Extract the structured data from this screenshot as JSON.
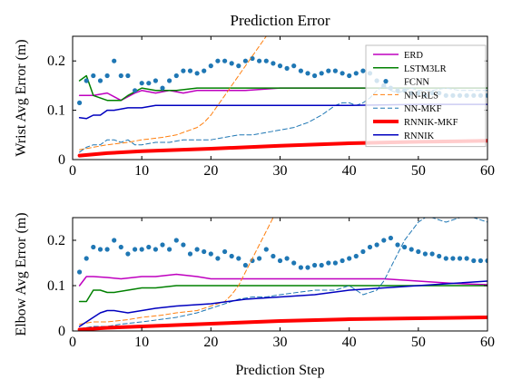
{
  "chart_data": [
    {
      "type": "line",
      "title": "Prediction Error",
      "xlabel": "",
      "ylabel": "Wrist Avg Error (m)",
      "xlim": [
        0,
        60
      ],
      "ylim": [
        0,
        0.25
      ],
      "xticks": [
        0,
        10,
        20,
        30,
        40,
        50,
        60
      ],
      "yticks": [
        0,
        0.1,
        0.2
      ],
      "xtick_labels": [
        "0",
        "10",
        "20",
        "30",
        "40",
        "50",
        "60"
      ],
      "ytick_labels": [
        "0",
        "0.1",
        "0.2"
      ],
      "grid": false,
      "legend": {
        "placement": "top-right",
        "entries": [
          "ERD",
          "LSTM3LR",
          "FCNN",
          "NN-RLS",
          "NN-MKF",
          "RNNIK-MKF",
          "RNNIK"
        ]
      },
      "series": [
        {
          "name": "ERD",
          "color": "#bf00bf",
          "style": "solid",
          "width": 1.5,
          "x": [
            1,
            3,
            5,
            7,
            9,
            10,
            12,
            14,
            16,
            18,
            20,
            25,
            30,
            35,
            40,
            45,
            50,
            55,
            60
          ],
          "y": [
            0.13,
            0.13,
            0.135,
            0.12,
            0.135,
            0.14,
            0.135,
            0.14,
            0.135,
            0.14,
            0.14,
            0.14,
            0.145,
            0.145,
            0.145,
            0.145,
            0.145,
            0.145,
            0.145
          ]
        },
        {
          "name": "LSTM3LR",
          "color": "#008000",
          "style": "solid",
          "width": 1.5,
          "x": [
            1,
            2,
            3,
            5,
            7,
            8,
            10,
            12,
            15,
            18,
            20,
            25,
            30,
            40,
            50,
            60
          ],
          "y": [
            0.16,
            0.17,
            0.13,
            0.12,
            0.12,
            0.13,
            0.145,
            0.14,
            0.14,
            0.145,
            0.145,
            0.145,
            0.145,
            0.145,
            0.145,
            0.145
          ]
        },
        {
          "name": "FCNN",
          "color": "#1f77b4",
          "style": "dots",
          "width": 0,
          "x": [
            1,
            2,
            3,
            4,
            5,
            6,
            7,
            8,
            9,
            10,
            11,
            12,
            13,
            14,
            15,
            16,
            17,
            18,
            19,
            20,
            21,
            22,
            23,
            24,
            25,
            26,
            27,
            28,
            29,
            30,
            31,
            32,
            33,
            34,
            35,
            36,
            37,
            38,
            39,
            40,
            41,
            42,
            43,
            44,
            45,
            46,
            47,
            48,
            49,
            50,
            51,
            52,
            53,
            54,
            55,
            56,
            57,
            58,
            59,
            60
          ],
          "y": [
            0.115,
            0.16,
            0.17,
            0.16,
            0.17,
            0.2,
            0.17,
            0.17,
            0.14,
            0.155,
            0.155,
            0.16,
            0.145,
            0.16,
            0.17,
            0.18,
            0.18,
            0.175,
            0.18,
            0.19,
            0.2,
            0.2,
            0.195,
            0.19,
            0.2,
            0.205,
            0.2,
            0.2,
            0.195,
            0.19,
            0.185,
            0.19,
            0.18,
            0.175,
            0.17,
            0.175,
            0.18,
            0.18,
            0.175,
            0.17,
            0.175,
            0.18,
            0.175,
            0.16,
            0.15,
            0.145,
            0.14,
            0.14,
            0.135,
            0.135,
            0.13,
            0.135,
            0.135,
            0.13,
            0.13,
            0.13,
            0.13,
            0.13,
            0.13,
            0.13
          ]
        },
        {
          "name": "NN-RLS",
          "color": "#ff7f0e",
          "style": "dashed",
          "width": 1,
          "x": [
            1,
            3,
            5,
            8,
            10,
            13,
            15,
            18,
            19,
            20,
            21,
            22,
            23,
            24,
            25,
            26,
            27,
            28
          ],
          "y": [
            0.02,
            0.025,
            0.03,
            0.035,
            0.04,
            0.045,
            0.05,
            0.065,
            0.075,
            0.09,
            0.11,
            0.13,
            0.15,
            0.17,
            0.19,
            0.21,
            0.23,
            0.25
          ]
        },
        {
          "name": "NN-MKF",
          "color": "#1f77b4",
          "style": "dashed",
          "width": 1,
          "x": [
            1,
            2,
            3,
            4,
            5,
            6,
            7,
            8,
            9,
            10,
            12,
            14,
            16,
            18,
            20,
            22,
            24,
            26,
            28,
            30,
            32,
            34,
            36,
            37,
            38,
            39,
            40,
            41,
            42,
            43,
            44,
            45,
            46,
            47,
            48,
            49,
            50,
            52,
            54,
            56,
            58,
            60
          ],
          "y": [
            0.015,
            0.025,
            0.03,
            0.03,
            0.04,
            0.04,
            0.035,
            0.04,
            0.03,
            0.03,
            0.035,
            0.035,
            0.04,
            0.04,
            0.04,
            0.045,
            0.05,
            0.05,
            0.055,
            0.06,
            0.065,
            0.075,
            0.09,
            0.1,
            0.11,
            0.115,
            0.115,
            0.11,
            0.115,
            0.125,
            0.14,
            0.15,
            0.14,
            0.135,
            0.14,
            0.145,
            0.14,
            0.14,
            0.145,
            0.14,
            0.14,
            0.14
          ]
        },
        {
          "name": "RNNIK-MKF",
          "color": "#ff0000",
          "style": "solid",
          "width": 4,
          "x": [
            1,
            5,
            10,
            20,
            30,
            40,
            50,
            60
          ],
          "y": [
            0.008,
            0.013,
            0.017,
            0.022,
            0.028,
            0.033,
            0.036,
            0.038
          ]
        },
        {
          "name": "RNNIK",
          "color": "#0000bf",
          "style": "solid",
          "width": 1.5,
          "x": [
            1,
            2,
            3,
            4,
            5,
            6,
            8,
            10,
            12,
            15,
            18,
            20,
            25,
            30,
            40,
            50,
            60
          ],
          "y": [
            0.085,
            0.083,
            0.09,
            0.09,
            0.1,
            0.1,
            0.105,
            0.105,
            0.11,
            0.11,
            0.11,
            0.11,
            0.11,
            0.11,
            0.11,
            0.112,
            0.112
          ]
        }
      ]
    },
    {
      "type": "line",
      "title": "",
      "xlabel": "Prediction Step",
      "ylabel": "Elbow Avg Error (m)",
      "xlim": [
        0,
        60
      ],
      "ylim": [
        0,
        0.25
      ],
      "xticks": [
        0,
        10,
        20,
        30,
        40,
        50,
        60
      ],
      "yticks": [
        0,
        0.1,
        0.2
      ],
      "xtick_labels": [
        "0",
        "10",
        "20",
        "30",
        "40",
        "50",
        "60"
      ],
      "ytick_labels": [
        "0",
        "0.1",
        "0.2"
      ],
      "grid": false,
      "series": [
        {
          "name": "ERD",
          "color": "#bf00bf",
          "style": "solid",
          "width": 1.5,
          "x": [
            1,
            2,
            3,
            5,
            7,
            10,
            12,
            15,
            18,
            20,
            25,
            30,
            40,
            45,
            50,
            55,
            60
          ],
          "y": [
            0.1,
            0.12,
            0.12,
            0.118,
            0.115,
            0.12,
            0.12,
            0.125,
            0.12,
            0.115,
            0.115,
            0.115,
            0.115,
            0.115,
            0.11,
            0.105,
            0.102
          ]
        },
        {
          "name": "LSTM3LR",
          "color": "#008000",
          "style": "solid",
          "width": 1.5,
          "x": [
            1,
            2,
            3,
            4,
            5,
            6,
            8,
            10,
            12,
            15,
            20,
            25,
            30,
            40,
            50,
            60
          ],
          "y": [
            0.065,
            0.065,
            0.09,
            0.09,
            0.085,
            0.085,
            0.09,
            0.095,
            0.095,
            0.1,
            0.1,
            0.1,
            0.1,
            0.1,
            0.1,
            0.1
          ]
        },
        {
          "name": "FCNN",
          "color": "#1f77b4",
          "style": "dots",
          "width": 0,
          "x": [
            1,
            2,
            3,
            4,
            5,
            6,
            7,
            8,
            9,
            10,
            11,
            12,
            13,
            14,
            15,
            16,
            17,
            18,
            19,
            20,
            21,
            22,
            23,
            24,
            25,
            26,
            27,
            28,
            29,
            30,
            31,
            32,
            33,
            34,
            35,
            36,
            37,
            38,
            39,
            40,
            41,
            42,
            43,
            44,
            45,
            46,
            47,
            48,
            49,
            50,
            51,
            52,
            53,
            54,
            55,
            56,
            57,
            58,
            59,
            60
          ],
          "y": [
            0.13,
            0.16,
            0.185,
            0.18,
            0.18,
            0.2,
            0.185,
            0.17,
            0.18,
            0.18,
            0.185,
            0.18,
            0.19,
            0.18,
            0.2,
            0.19,
            0.17,
            0.18,
            0.175,
            0.17,
            0.16,
            0.175,
            0.165,
            0.16,
            0.145,
            0.155,
            0.16,
            0.18,
            0.165,
            0.155,
            0.16,
            0.15,
            0.14,
            0.14,
            0.145,
            0.145,
            0.15,
            0.15,
            0.155,
            0.16,
            0.165,
            0.175,
            0.185,
            0.19,
            0.2,
            0.205,
            0.19,
            0.185,
            0.18,
            0.175,
            0.17,
            0.17,
            0.165,
            0.16,
            0.16,
            0.16,
            0.16,
            0.155,
            0.155,
            0.155
          ]
        },
        {
          "name": "NN-RLS",
          "color": "#ff7f0e",
          "style": "dashed",
          "width": 1,
          "x": [
            1,
            3,
            5,
            8,
            10,
            13,
            15,
            18,
            20,
            22,
            23,
            24,
            25,
            26,
            27,
            28,
            29
          ],
          "y": [
            0.015,
            0.02,
            0.02,
            0.025,
            0.03,
            0.035,
            0.04,
            0.045,
            0.055,
            0.065,
            0.08,
            0.1,
            0.13,
            0.16,
            0.19,
            0.22,
            0.25
          ]
        },
        {
          "name": "NN-MKF",
          "color": "#1f77b4",
          "style": "dashed",
          "width": 1,
          "x": [
            1,
            3,
            5,
            7,
            10,
            15,
            18,
            20,
            22,
            24,
            26,
            28,
            30,
            35,
            38,
            40,
            41,
            42,
            44,
            45,
            46,
            47,
            48,
            49,
            50,
            51,
            52,
            54,
            56,
            58,
            60
          ],
          "y": [
            0.005,
            0.01,
            0.01,
            0.015,
            0.02,
            0.03,
            0.04,
            0.05,
            0.06,
            0.07,
            0.075,
            0.075,
            0.08,
            0.09,
            0.09,
            0.1,
            0.09,
            0.08,
            0.09,
            0.11,
            0.14,
            0.17,
            0.2,
            0.22,
            0.24,
            0.25,
            0.25,
            0.24,
            0.25,
            0.25,
            0.24
          ]
        },
        {
          "name": "RNNIK-MKF",
          "color": "#ff0000",
          "style": "solid",
          "width": 4,
          "x": [
            1,
            5,
            10,
            20,
            30,
            40,
            50,
            60
          ],
          "y": [
            0.003,
            0.007,
            0.01,
            0.016,
            0.022,
            0.026,
            0.028,
            0.03
          ]
        },
        {
          "name": "RNNIK",
          "color": "#0000bf",
          "style": "solid",
          "width": 1.5,
          "x": [
            1,
            2,
            3,
            4,
            5,
            6,
            8,
            10,
            12,
            15,
            20,
            25,
            30,
            35,
            40,
            45,
            50,
            55,
            60
          ],
          "y": [
            0.01,
            0.02,
            0.03,
            0.04,
            0.045,
            0.045,
            0.04,
            0.045,
            0.05,
            0.055,
            0.06,
            0.07,
            0.075,
            0.08,
            0.09,
            0.095,
            0.1,
            0.105,
            0.11
          ]
        }
      ]
    }
  ]
}
